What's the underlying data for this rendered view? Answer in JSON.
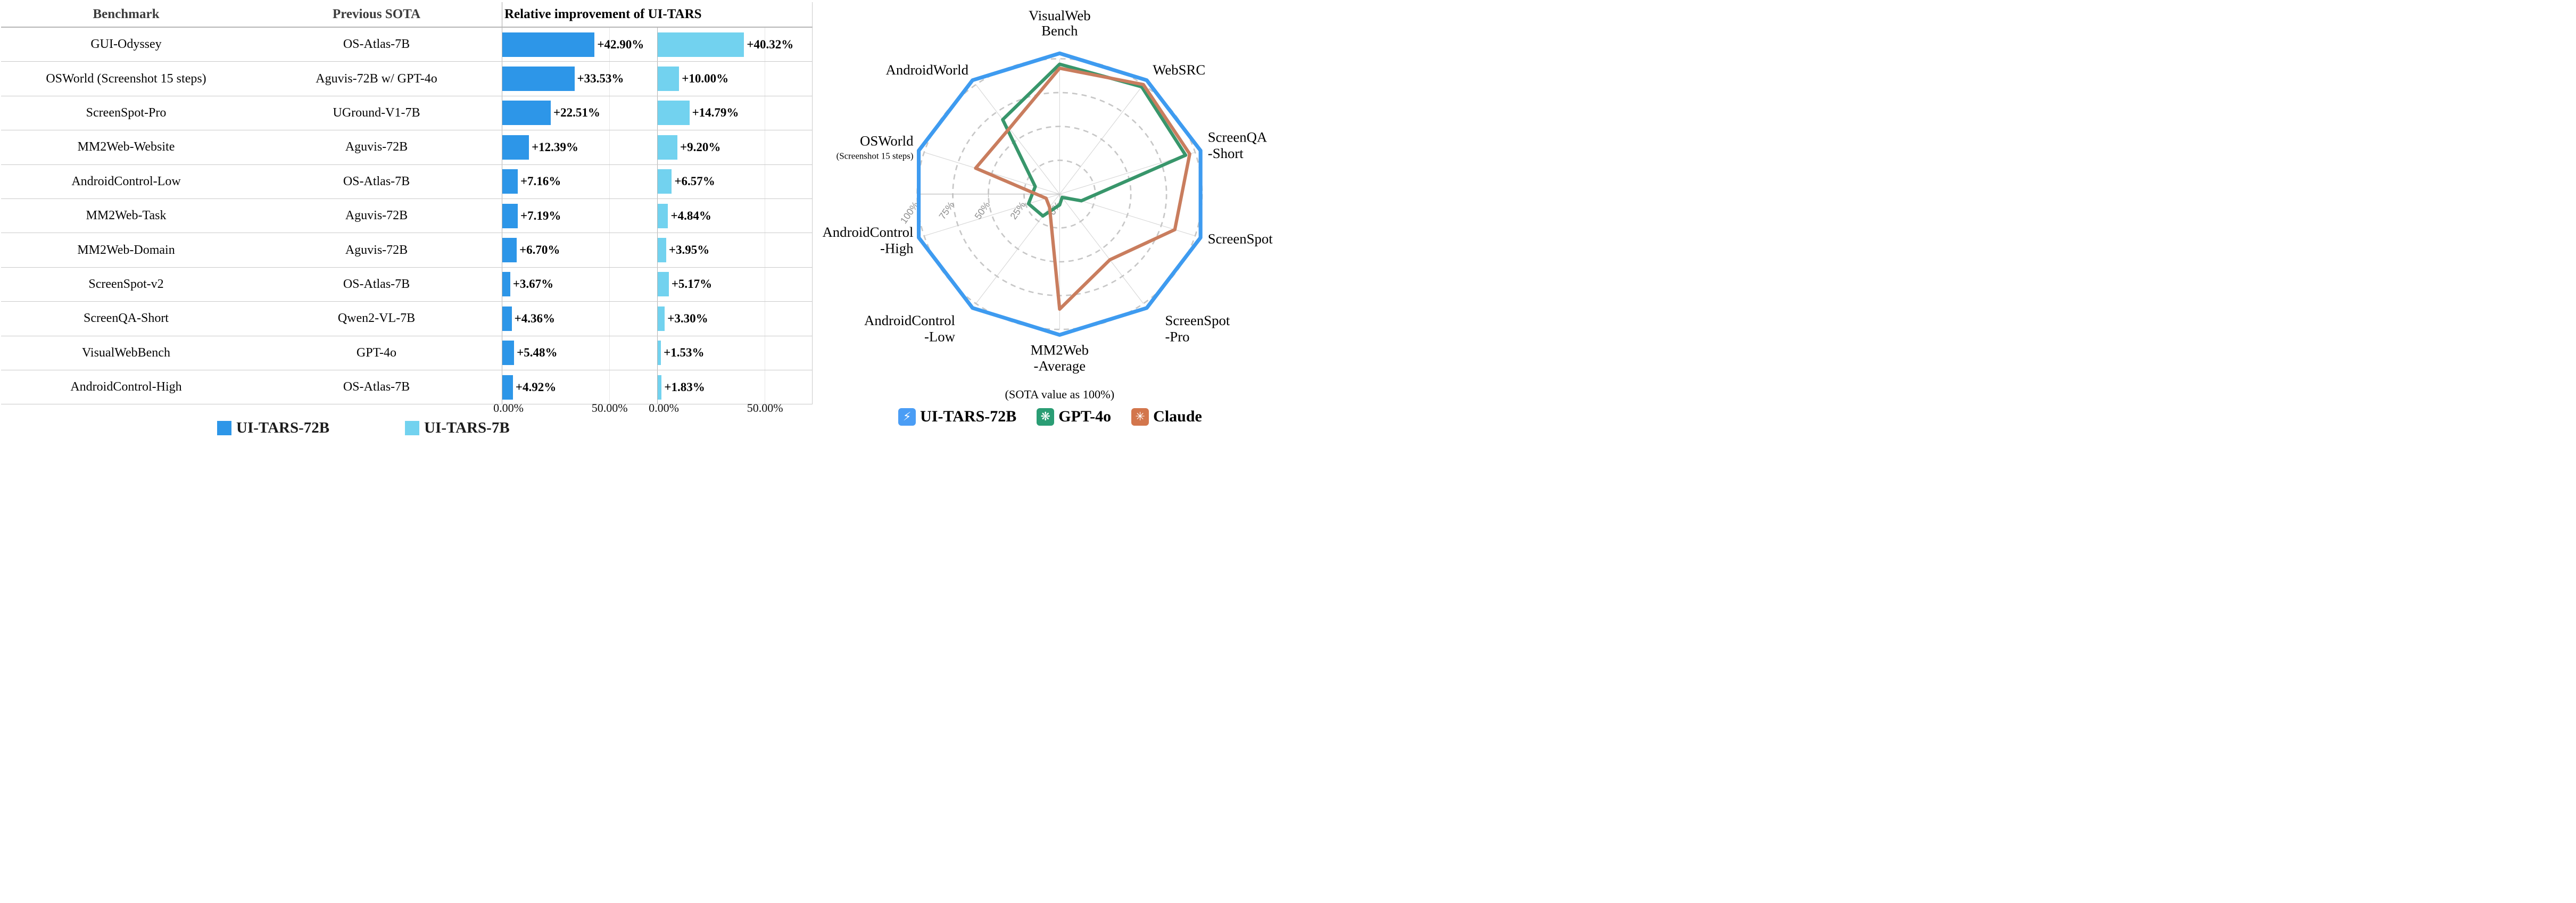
{
  "table": {
    "headers": {
      "benchmark": "Benchmark",
      "previous_sota": "Previous SOTA",
      "improvement": "Relative improvement of UI-TARS"
    },
    "axis": {
      "zero_label": "0.00%",
      "fifty_label": "50.00%",
      "max_percent": 72,
      "gridline_percent": 50
    },
    "rows": [
      {
        "benchmark": "GUI-Odyssey",
        "previous_sota": "OS-Atlas-7B",
        "tars72_value": 42.9,
        "tars72_label": "+42.90%",
        "tars7_value": 40.32,
        "tars7_label": "+40.32%"
      },
      {
        "benchmark": "OSWorld (Screenshot 15 steps)",
        "previous_sota": "Aguvis-72B w/ GPT-4o",
        "tars72_value": 33.53,
        "tars72_label": "+33.53%",
        "tars7_value": 10.0,
        "tars7_label": "+10.00%"
      },
      {
        "benchmark": "ScreenSpot-Pro",
        "previous_sota": "UGround-V1-7B",
        "tars72_value": 22.51,
        "tars72_label": "+22.51%",
        "tars7_value": 14.79,
        "tars7_label": "+14.79%"
      },
      {
        "benchmark": "MM2Web-Website",
        "previous_sota": "Aguvis-72B",
        "tars72_value": 12.39,
        "tars72_label": "+12.39%",
        "tars7_value": 9.2,
        "tars7_label": "+9.20%"
      },
      {
        "benchmark": "AndroidControl-Low",
        "previous_sota": "OS-Atlas-7B",
        "tars72_value": 7.16,
        "tars72_label": "+7.16%",
        "tars7_value": 6.57,
        "tars7_label": "+6.57%"
      },
      {
        "benchmark": "MM2Web-Task",
        "previous_sota": "Aguvis-72B",
        "tars72_value": 7.19,
        "tars72_label": "+7.19%",
        "tars7_value": 4.84,
        "tars7_label": "+4.84%"
      },
      {
        "benchmark": "MM2Web-Domain",
        "previous_sota": "Aguvis-72B",
        "tars72_value": 6.7,
        "tars72_label": "+6.70%",
        "tars7_value": 3.95,
        "tars7_label": "+3.95%"
      },
      {
        "benchmark": "ScreenSpot-v2",
        "previous_sota": "OS-Atlas-7B",
        "tars72_value": 3.67,
        "tars72_label": "+3.67%",
        "tars7_value": 5.17,
        "tars7_label": "+5.17%"
      },
      {
        "benchmark": "ScreenQA-Short",
        "previous_sota": "Qwen2-VL-7B",
        "tars72_value": 4.36,
        "tars72_label": "+4.36%",
        "tars7_value": 3.3,
        "tars7_label": "+3.30%"
      },
      {
        "benchmark": "VisualWebBench",
        "previous_sota": "GPT-4o",
        "tars72_value": 5.48,
        "tars72_label": "+5.48%",
        "tars7_value": 1.53,
        "tars7_label": "+1.53%"
      },
      {
        "benchmark": "AndroidControl-High",
        "previous_sota": "OS-Atlas-7B",
        "tars72_value": 4.92,
        "tars72_label": "+4.92%",
        "tars7_value": 1.83,
        "tars7_label": "+1.83%"
      }
    ]
  },
  "bar_legend": [
    {
      "label": "UI-TARS-72B",
      "color": "#2D96E8"
    },
    {
      "label": "UI-TARS-7B",
      "color": "#72D2EF"
    }
  ],
  "colors": {
    "bar_72b": "#2D96E8",
    "bar_7b": "#72D2EF",
    "radar_uitars": "#3E9BF0",
    "radar_gpt4o": "#38966B",
    "radar_claude": "#C97D5E",
    "grid_ring": "#c7c7c7",
    "grid_spoke": "#d8d8d8"
  },
  "radar": {
    "caption": "(SOTA value as 100%)",
    "radial_ticks": [
      "100%",
      "75%",
      "50%",
      "25%",
      "0%"
    ],
    "axis_labels": [
      {
        "lines": [
          "VisualWeb",
          "Bench"
        ]
      },
      {
        "lines": [
          "WebSRC"
        ]
      },
      {
        "lines": [
          "ScreenQA",
          "-Short"
        ]
      },
      {
        "lines": [
          "ScreenSpot"
        ]
      },
      {
        "lines": [
          "ScreenSpot",
          "-Pro"
        ]
      },
      {
        "lines": [
          "MM2Web",
          "-Average"
        ]
      },
      {
        "lines": [
          "AndroidControl",
          "-Low"
        ]
      },
      {
        "lines": [
          "AndroidControl",
          "-High"
        ]
      },
      {
        "lines": [
          "OSWorld"
        ],
        "sub": "(Screenshot 15 steps)"
      },
      {
        "lines": [
          "AndroidWorld"
        ]
      }
    ],
    "legend": [
      {
        "label": "UI-TARS-72B",
        "color": "#4A9DF5",
        "icon": "lightning-icon",
        "glyph": "⚡"
      },
      {
        "label": "GPT-4o",
        "color": "#2A9D74",
        "icon": "openai-icon",
        "glyph": "❋"
      },
      {
        "label": "Claude",
        "color": "#D3764C",
        "icon": "claude-icon",
        "glyph": "✳"
      }
    ]
  },
  "chart_data": [
    {
      "type": "bar",
      "title": "Relative improvement of UI-TARS",
      "orientation": "horizontal",
      "categories": [
        "GUI-Odyssey",
        "OSWorld (Screenshot 15 steps)",
        "ScreenSpot-Pro",
        "MM2Web-Website",
        "AndroidControl-Low",
        "MM2Web-Task",
        "MM2Web-Domain",
        "ScreenSpot-v2",
        "ScreenQA-Short",
        "VisualWebBench",
        "AndroidControl-High"
      ],
      "previous_sota": [
        "OS-Atlas-7B",
        "Aguvis-72B w/ GPT-4o",
        "UGround-V1-7B",
        "Aguvis-72B",
        "OS-Atlas-7B",
        "Aguvis-72B",
        "Aguvis-72B",
        "OS-Atlas-7B",
        "Qwen2-VL-7B",
        "GPT-4o",
        "OS-Atlas-7B"
      ],
      "series": [
        {
          "name": "UI-TARS-72B",
          "values": [
            42.9,
            33.53,
            22.51,
            12.39,
            7.16,
            7.19,
            6.7,
            3.67,
            4.36,
            5.48,
            4.92
          ]
        },
        {
          "name": "UI-TARS-7B",
          "values": [
            40.32,
            10.0,
            14.79,
            9.2,
            6.57,
            4.84,
            3.95,
            5.17,
            3.3,
            1.53,
            1.83
          ]
        }
      ],
      "xlabel": "",
      "ylabel": "",
      "xlim": [
        0,
        72
      ],
      "xticks": [
        "0.00%",
        "50.00%"
      ],
      "grid": "50% line only",
      "legend_position": "bottom"
    },
    {
      "type": "radar",
      "title": "(SOTA value as 100%)",
      "categories": [
        "VisualWebBench",
        "WebSRC",
        "ScreenQA-Short",
        "ScreenSpot",
        "ScreenSpot-Pro",
        "MM2Web-Average",
        "AndroidControl-Low",
        "AndroidControl-High",
        "OSWorld (Screenshot 15 steps)",
        "AndroidWorld"
      ],
      "rlim": [
        0,
        100
      ],
      "rticks": [
        0,
        25,
        50,
        75,
        100
      ],
      "grid": "dashed rings every 25%",
      "legend_position": "bottom",
      "series": [
        {
          "name": "UI-TARS-72B",
          "values": [
            104,
            104,
            104,
            104,
            104,
            104,
            104,
            104,
            104,
            104
          ]
        },
        {
          "name": "GPT-4o",
          "values": [
            96,
            98,
            93,
            16,
            3,
            8,
            20,
            23,
            18,
            68
          ]
        },
        {
          "name": "Claude",
          "values": [
            93,
            100,
            96,
            85,
            60,
            85,
            12,
            10,
            62,
            60
          ]
        }
      ]
    }
  ]
}
